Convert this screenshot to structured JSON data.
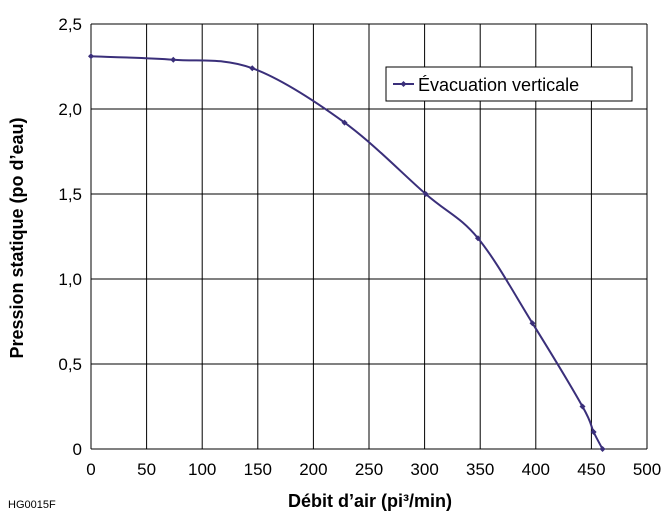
{
  "figure_code": "HG0015F",
  "chart_data": {
    "type": "line",
    "xlabel": "Débit d’air (pi³/min)",
    "ylabel": "Pression statique (po d’eau)",
    "xlim": [
      0,
      500
    ],
    "ylim": [
      0,
      2.5
    ],
    "x_ticks": [
      0,
      50,
      100,
      150,
      200,
      250,
      300,
      350,
      400,
      450,
      500
    ],
    "x_tick_labels": [
      "0",
      "50",
      "100",
      "150",
      "200",
      "250",
      "300",
      "350",
      "400",
      "450",
      "500"
    ],
    "y_ticks": [
      0,
      0.5,
      1.0,
      1.5,
      2.0,
      2.5
    ],
    "y_tick_labels": [
      "0",
      "0,5",
      "1,0",
      "1,5",
      "2,0",
      "2,5"
    ],
    "grid": true,
    "legend_position": "top-right",
    "series": [
      {
        "name": "Évacuation verticale",
        "color": "#3a2f7a",
        "x": [
          0,
          74,
          145,
          228,
          301,
          348,
          397,
          442,
          452,
          460
        ],
        "y": [
          2.31,
          2.29,
          2.24,
          1.92,
          1.5,
          1.24,
          0.74,
          0.25,
          0.1,
          0.0
        ]
      }
    ]
  }
}
